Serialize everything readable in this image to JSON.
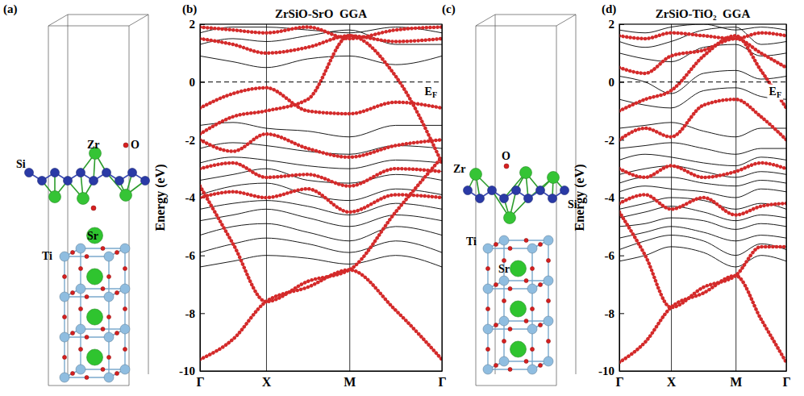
{
  "panel_labels": [
    "(a)",
    "(b)",
    "(c)",
    "(d)"
  ],
  "structures": [
    {
      "labels": [
        "Zr",
        "O",
        "Si",
        "Sr",
        "Ti"
      ]
    },
    {
      "labels": [
        "O",
        "Zr",
        "Si",
        "Ti",
        "Sr"
      ]
    }
  ],
  "chart_data": [
    {
      "type": "line",
      "title": "ZrSiO-SrO  GGA",
      "ylabel": "Energy (eV)",
      "x": [
        0,
        0.5,
        1,
        1.63,
        2.26,
        2.96,
        3.66
      ],
      "xlim": [
        0,
        3.66
      ],
      "xticks": [
        {
          "value": 0,
          "label": "Γ"
        },
        {
          "value": 1,
          "label": "X"
        },
        {
          "value": 2.26,
          "label": "M"
        },
        {
          "value": 3.66,
          "label": "Γ"
        }
      ],
      "ylim": [
        -10,
        2
      ],
      "yticks": [
        -10,
        -8,
        -6,
        -4,
        -2,
        0,
        2
      ],
      "grid": true,
      "fermi_level": 0,
      "fermi_label": {
        "text": "E",
        "subscript": "F"
      },
      "series": [
        {
          "color": "#000000",
          "line_style": "solid",
          "values": [
            -6.4,
            -6.2,
            -6.0,
            -6.1,
            -6.3,
            -6.0,
            -6.4
          ]
        },
        {
          "color": "#000000",
          "line_style": "solid",
          "values": [
            -5.9,
            -5.6,
            -5.4,
            -5.6,
            -5.9,
            -5.5,
            -5.9
          ]
        },
        {
          "color": "#000000",
          "line_style": "solid",
          "values": [
            -5.3,
            -5.0,
            -4.9,
            -5.2,
            -5.5,
            -5.0,
            -5.3
          ]
        },
        {
          "color": "#000000",
          "line_style": "solid",
          "values": [
            -4.8,
            -4.6,
            -4.4,
            -4.7,
            -5.0,
            -4.6,
            -4.8
          ]
        },
        {
          "color": "#000000",
          "line_style": "solid",
          "values": [
            -4.4,
            -4.2,
            -4.1,
            -4.3,
            -4.6,
            -4.2,
            -4.4
          ]
        },
        {
          "color": "#000000",
          "line_style": "solid",
          "values": [
            -3.9,
            -3.6,
            -3.5,
            -3.9,
            -4.1,
            -3.7,
            -3.9
          ]
        },
        {
          "color": "#000000",
          "line_style": "solid",
          "values": [
            -3.4,
            -3.2,
            -3.0,
            -3.4,
            -3.5,
            -3.2,
            -3.4
          ]
        },
        {
          "color": "#000000",
          "line_style": "solid",
          "values": [
            -2.8,
            -2.6,
            -2.7,
            -2.9,
            -3.0,
            -2.7,
            -2.8
          ]
        },
        {
          "color": "#000000",
          "line_style": "solid",
          "values": [
            -2.3,
            -2.1,
            -2.2,
            -2.4,
            -2.5,
            -2.2,
            -2.3
          ]
        },
        {
          "color": "#000000",
          "line_style": "solid",
          "values": [
            -1.5,
            -1.4,
            -1.6,
            -1.7,
            -1.9,
            -1.5,
            -1.5
          ]
        },
        {
          "color": "#000000",
          "line_style": "solid",
          "values": [
            0.9,
            0.7,
            0.5,
            0.8,
            0.9,
            0.6,
            0.9
          ]
        },
        {
          "color": "#000000",
          "line_style": "solid",
          "values": [
            1.3,
            1.5,
            1.4,
            1.6,
            1.8,
            1.3,
            1.3
          ]
        },
        {
          "color": "#000000",
          "line_style": "solid",
          "values": [
            1.7,
            1.9,
            1.9,
            1.8,
            1.7,
            1.9,
            1.7
          ]
        },
        {
          "color": "#d42a2a",
          "line_style": "dotted",
          "values": [
            -9.6,
            -8.9,
            -7.6,
            -7.1,
            -6.5,
            -7.9,
            -9.6
          ]
        },
        {
          "color": "#d42a2a",
          "line_style": "dotted",
          "values": [
            -3.6,
            -5.6,
            -7.6,
            -6.9,
            -6.5,
            -4.5,
            -2.6
          ]
        },
        {
          "color": "#d42a2a",
          "line_style": "dotted",
          "values": [
            -1.8,
            -1.2,
            -1.0,
            -0.6,
            1.6,
            0.2,
            -2.8
          ]
        },
        {
          "color": "#d42a2a",
          "line_style": "dotted",
          "values": [
            -0.9,
            -0.4,
            -0.2,
            -1.0,
            -1.1,
            -0.7,
            -0.9
          ]
        },
        {
          "color": "#d42a2a",
          "line_style": "dotted",
          "values": [
            -2.0,
            -2.4,
            -1.8,
            -2.3,
            -2.6,
            -2.2,
            -2.0
          ]
        },
        {
          "color": "#d42a2a",
          "line_style": "dotted",
          "values": [
            -3.0,
            -2.8,
            -3.3,
            -3.2,
            -3.6,
            -3.0,
            -3.1
          ]
        },
        {
          "color": "#d42a2a",
          "line_style": "dotted",
          "values": [
            -4.0,
            -3.8,
            -4.0,
            -3.7,
            -4.5,
            -3.9,
            -4.0
          ]
        },
        {
          "color": "#d42a2a",
          "line_style": "dotted",
          "values": [
            1.5,
            1.3,
            1.0,
            1.2,
            1.6,
            1.4,
            1.5
          ]
        },
        {
          "color": "#d42a2a",
          "line_style": "dotted",
          "values": [
            1.9,
            1.8,
            1.7,
            1.9,
            1.5,
            1.8,
            1.9
          ]
        }
      ]
    },
    {
      "type": "line",
      "title": "ZrSiO-TiO₂  GGA",
      "ylabel": "Energy (eV)",
      "x": [
        0,
        0.5,
        1,
        1.63,
        2.25,
        2.74,
        3.23
      ],
      "xlim": [
        0,
        3.23
      ],
      "xticks": [
        {
          "value": 0,
          "label": "Γ"
        },
        {
          "value": 1,
          "label": "X"
        },
        {
          "value": 2.25,
          "label": "M"
        },
        {
          "value": 3.23,
          "label": "Γ"
        }
      ],
      "ylim": [
        -10,
        2
      ],
      "yticks": [
        -10,
        -8,
        -6,
        -4,
        -2,
        0,
        2
      ],
      "grid": true,
      "fermi_level": 0,
      "fermi_label": {
        "text": "E",
        "subscript": "F"
      },
      "series": [
        {
          "color": "#000000",
          "line_style": "solid",
          "values": [
            -6.2,
            -6.0,
            -5.7,
            -5.9,
            -6.4,
            -6.0,
            -6.2
          ]
        },
        {
          "color": "#000000",
          "line_style": "solid",
          "values": [
            -5.8,
            -5.5,
            -5.3,
            -5.5,
            -6.0,
            -5.6,
            -5.8
          ]
        },
        {
          "color": "#000000",
          "line_style": "solid",
          "values": [
            -5.4,
            -5.2,
            -5.0,
            -5.2,
            -5.5,
            -5.3,
            -5.4
          ]
        },
        {
          "color": "#000000",
          "line_style": "solid",
          "values": [
            -5.0,
            -4.9,
            -4.7,
            -4.8,
            -5.1,
            -4.9,
            -5.0
          ]
        },
        {
          "color": "#000000",
          "line_style": "solid",
          "values": [
            -4.7,
            -4.5,
            -4.3,
            -4.5,
            -4.8,
            -4.6,
            -4.7
          ]
        },
        {
          "color": "#000000",
          "line_style": "solid",
          "values": [
            -4.4,
            -4.2,
            -4.0,
            -4.1,
            -4.4,
            -4.2,
            -4.4
          ]
        },
        {
          "color": "#000000",
          "line_style": "solid",
          "values": [
            -3.8,
            -3.6,
            -3.7,
            -3.8,
            -4.0,
            -3.7,
            -3.8
          ]
        },
        {
          "color": "#000000",
          "line_style": "solid",
          "values": [
            -3.5,
            -3.3,
            -3.3,
            -3.5,
            -3.6,
            -3.4,
            -3.5
          ]
        },
        {
          "color": "#000000",
          "line_style": "solid",
          "values": [
            -3.2,
            -3.0,
            -2.9,
            -3.1,
            -3.3,
            -3.1,
            -3.2
          ]
        },
        {
          "color": "#000000",
          "line_style": "solid",
          "values": [
            -2.7,
            -2.5,
            -2.6,
            -2.8,
            -2.9,
            -2.6,
            -2.7
          ]
        },
        {
          "color": "#000000",
          "line_style": "solid",
          "values": [
            -2.3,
            -2.2,
            -2.1,
            -2.3,
            -2.5,
            -2.3,
            -2.3
          ]
        },
        {
          "color": "#000000",
          "line_style": "solid",
          "values": [
            -1.6,
            -1.5,
            -1.4,
            -1.7,
            -1.9,
            -1.6,
            -1.6
          ]
        },
        {
          "color": "#000000",
          "line_style": "solid",
          "values": [
            -0.6,
            -0.8,
            -0.9,
            -0.3,
            -0.2,
            -0.5,
            -0.6
          ]
        },
        {
          "color": "#000000",
          "line_style": "solid",
          "values": [
            0.2,
            0.0,
            -0.4,
            0.3,
            0.4,
            0.1,
            0.2
          ]
        },
        {
          "color": "#000000",
          "line_style": "solid",
          "values": [
            1.0,
            0.8,
            0.7,
            1.2,
            1.3,
            0.9,
            1.0
          ]
        },
        {
          "color": "#000000",
          "line_style": "solid",
          "values": [
            1.4,
            1.2,
            1.4,
            1.8,
            1.9,
            1.3,
            1.4
          ]
        },
        {
          "color": "#000000",
          "line_style": "solid",
          "values": [
            1.8,
            1.7,
            1.9,
            2.0,
            1.8,
            1.9,
            1.8
          ]
        },
        {
          "color": "#d42a2a",
          "line_style": "dotted",
          "values": [
            -9.7,
            -9.0,
            -7.8,
            -7.3,
            -6.7,
            -8.2,
            -9.7
          ]
        },
        {
          "color": "#d42a2a",
          "line_style": "dotted",
          "values": [
            -4.5,
            -6.0,
            -7.8,
            -7.1,
            -6.7,
            -5.7,
            -5.7
          ]
        },
        {
          "color": "#d42a2a",
          "line_style": "dotted",
          "values": [
            -1.0,
            -0.6,
            -0.3,
            0.9,
            1.6,
            0.4,
            -0.9
          ]
        },
        {
          "color": "#d42a2a",
          "line_style": "dotted",
          "values": [
            -2.0,
            -1.6,
            -1.9,
            -0.8,
            -0.6,
            -1.2,
            -2.0
          ]
        },
        {
          "color": "#d42a2a",
          "line_style": "dotted",
          "values": [
            -3.0,
            -3.3,
            -2.9,
            -3.3,
            -3.1,
            -2.8,
            -3.0
          ]
        },
        {
          "color": "#d42a2a",
          "line_style": "dotted",
          "values": [
            -4.2,
            -3.9,
            -4.4,
            -4.0,
            -4.6,
            -4.3,
            -4.2
          ]
        },
        {
          "color": "#d42a2a",
          "line_style": "dotted",
          "values": [
            0.5,
            0.3,
            0.9,
            1.1,
            1.5,
            1.0,
            0.5
          ]
        },
        {
          "color": "#d42a2a",
          "line_style": "dotted",
          "values": [
            1.6,
            1.5,
            1.7,
            1.6,
            1.5,
            1.7,
            1.6
          ]
        }
      ]
    }
  ]
}
